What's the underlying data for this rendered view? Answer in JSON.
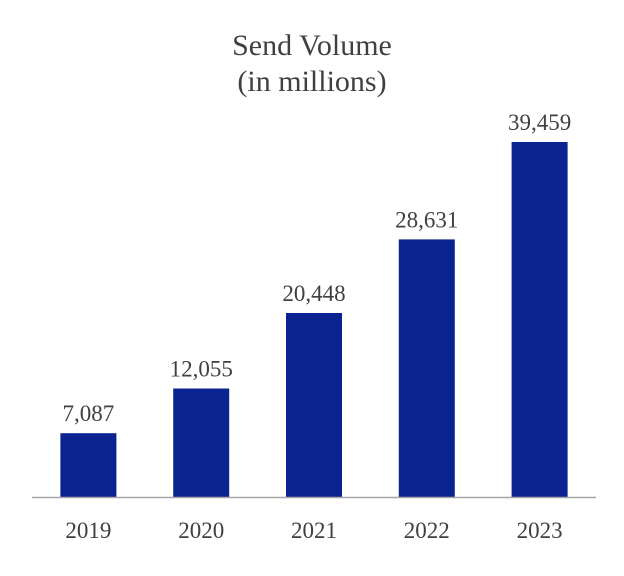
{
  "chart_data": {
    "type": "bar",
    "title": [
      "Send Volume",
      "(in millions)"
    ],
    "categories": [
      "2019",
      "2020",
      "2021",
      "2022",
      "2023"
    ],
    "values": [
      7087,
      12055,
      20448,
      28631,
      39459
    ],
    "value_labels": [
      "7,087",
      "12,055",
      "20,448",
      "28,631",
      "39,459"
    ],
    "xlabel": "",
    "ylabel": "",
    "ylim": [
      0,
      44000
    ],
    "grid": false,
    "legend": "none"
  },
  "colors": {
    "bar": "#0a2391",
    "axis": "#a6a6a6",
    "text": "#404040"
  }
}
